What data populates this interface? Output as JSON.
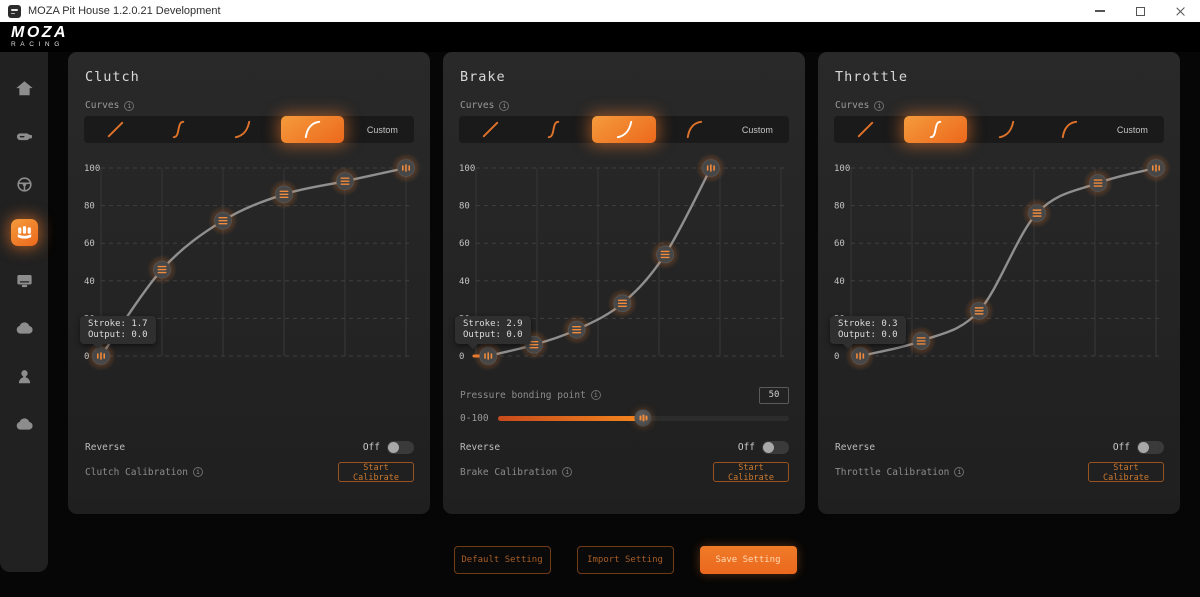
{
  "window": {
    "title": "MOZA Pit House 1.2.0.21 Development",
    "control_icons": [
      "minimize-icon",
      "maximize-icon",
      "close-icon"
    ]
  },
  "brand": {
    "name": "MOZA",
    "sub": "RACING"
  },
  "colors": {
    "accent": "#ED6E1E",
    "accent_bright": "#F59B3C",
    "panel": "#242424",
    "background": "#060606",
    "curve": "#8F8F8F"
  },
  "sidebar": {
    "items": [
      {
        "icon": "home-icon",
        "active": false
      },
      {
        "icon": "wheelbase-icon",
        "active": false
      },
      {
        "icon": "steering-wheel-icon",
        "active": false
      },
      {
        "icon": "pedals-icon",
        "active": true
      },
      {
        "icon": "monitor-icon",
        "active": false
      },
      {
        "icon": "cloud-download-icon",
        "active": false
      },
      {
        "icon": "user-icon",
        "active": false
      },
      {
        "icon": "cloud-upload-icon",
        "active": false
      }
    ]
  },
  "curve_preset_icons": [
    "linear-curve-icon",
    "s-curve-icon",
    "exponential-curve-icon",
    "logarithmic-curve-icon"
  ],
  "panels": [
    {
      "title": "Clutch",
      "curves_label": "Curves",
      "custom_label": "Custom",
      "selected_preset": 3,
      "tooltip": [
        "Stroke: 1.7",
        "Output: 0.0"
      ],
      "reverse_label": "Reverse",
      "reverse_state": "Off",
      "calibration_label": "Clutch Calibration",
      "calibrate_button": "Start Calibrate",
      "chart": {
        "type": "line",
        "x": [
          0,
          20,
          40,
          60,
          80,
          100
        ],
        "y": [
          0,
          46,
          72,
          86,
          93,
          100
        ],
        "y_ticks": [
          0,
          20,
          40,
          60,
          80,
          100
        ],
        "xlim": [
          0,
          100
        ],
        "ylim": [
          0,
          100
        ],
        "lead_in": false
      }
    },
    {
      "title": "Brake",
      "curves_label": "Curves",
      "custom_label": "Custom",
      "selected_preset": 2,
      "tooltip": [
        "Stroke: 2.9",
        "Output: 0.0"
      ],
      "pressure": {
        "label": "Pressure bonding point",
        "value": "50",
        "range_label": "0-100",
        "percent": 50
      },
      "reverse_label": "Reverse",
      "reverse_state": "Off",
      "calibration_label": "Brake Calibration",
      "calibrate_button": "Start Calibrate",
      "chart": {
        "type": "line",
        "x": [
          4,
          19,
          33,
          48,
          62,
          77
        ],
        "y": [
          0,
          6,
          14,
          28,
          54,
          100
        ],
        "y_ticks": [
          0,
          20,
          40,
          60,
          80,
          100
        ],
        "xlim": [
          0,
          100
        ],
        "ylim": [
          0,
          100
        ],
        "lead_in": true
      }
    },
    {
      "title": "Throttle",
      "curves_label": "Curves",
      "custom_label": "Custom",
      "selected_preset": 1,
      "tooltip": [
        "Stroke: 0.3",
        "Output: 0.0"
      ],
      "reverse_label": "Reverse",
      "reverse_state": "Off",
      "calibration_label": "Throttle Calibration",
      "calibrate_button": "Start Calibrate",
      "chart": {
        "type": "line",
        "x": [
          3,
          23,
          42,
          61,
          81,
          100
        ],
        "y": [
          0,
          8,
          24,
          76,
          92,
          100
        ],
        "y_ticks": [
          0,
          20,
          40,
          60,
          80,
          100
        ],
        "xlim": [
          0,
          100
        ],
        "ylim": [
          0,
          100
        ],
        "lead_in": false
      }
    }
  ],
  "footer": {
    "buttons": [
      "Default Setting",
      "Import Setting",
      "Save Setting"
    ]
  }
}
